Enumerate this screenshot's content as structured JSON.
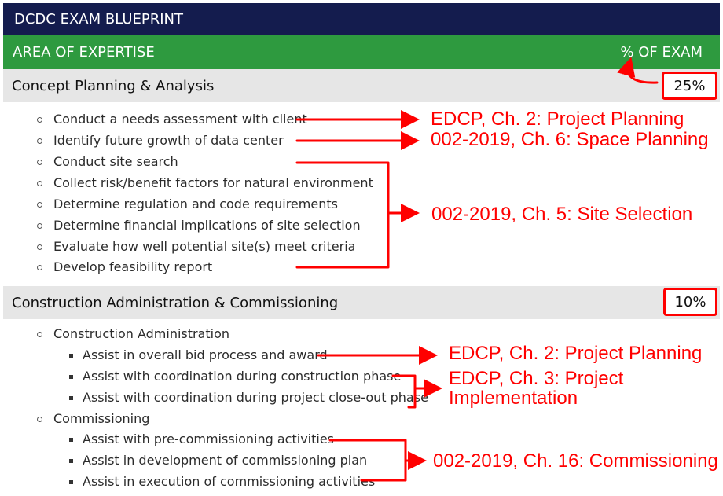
{
  "title": "DCDC EXAM BLUEPRINT",
  "header": {
    "area_label": "AREA OF EXPERTISE",
    "percent_label": "% OF EXAM"
  },
  "sections": [
    {
      "name": "Concept Planning & Analysis",
      "percent": "25%",
      "items": [
        "Conduct a needs assessment with client",
        "Identify future growth of data center",
        "Conduct site search",
        "Collect risk/benefit factors for natural environment",
        "Determine regulation and code requirements",
        "Determine financial implications of site selection",
        "Evaluate how well potential site(s) meet criteria",
        "Develop feasibility report"
      ]
    },
    {
      "name": "Construction Administration & Commissioning",
      "percent": "10%",
      "groups": [
        {
          "label": "Construction Administration",
          "items": [
            "Assist in overall bid process and award",
            "Assist with coordination during construction phase",
            "Assist with coordination during project close-out phase"
          ]
        },
        {
          "label": "Commissioning",
          "items": [
            "Assist with pre-commissioning activities",
            "Assist in development of commissioning plan",
            "Assist in execution of commissioning activities"
          ]
        }
      ]
    }
  ],
  "annotations": {
    "ref1": "EDCP, Ch. 2: Project Planning",
    "ref2": "002-2019, Ch. 6: Space Planning",
    "ref3": "002-2019, Ch. 5: Site Selection",
    "ref4": "EDCP, Ch. 2: Project Planning",
    "ref5_line1": "EDCP, Ch. 3: Project",
    "ref5_line2": "Implementation",
    "ref6": "002-2019, Ch. 16: Commissioning",
    "annotation_color": "#ff0000"
  }
}
